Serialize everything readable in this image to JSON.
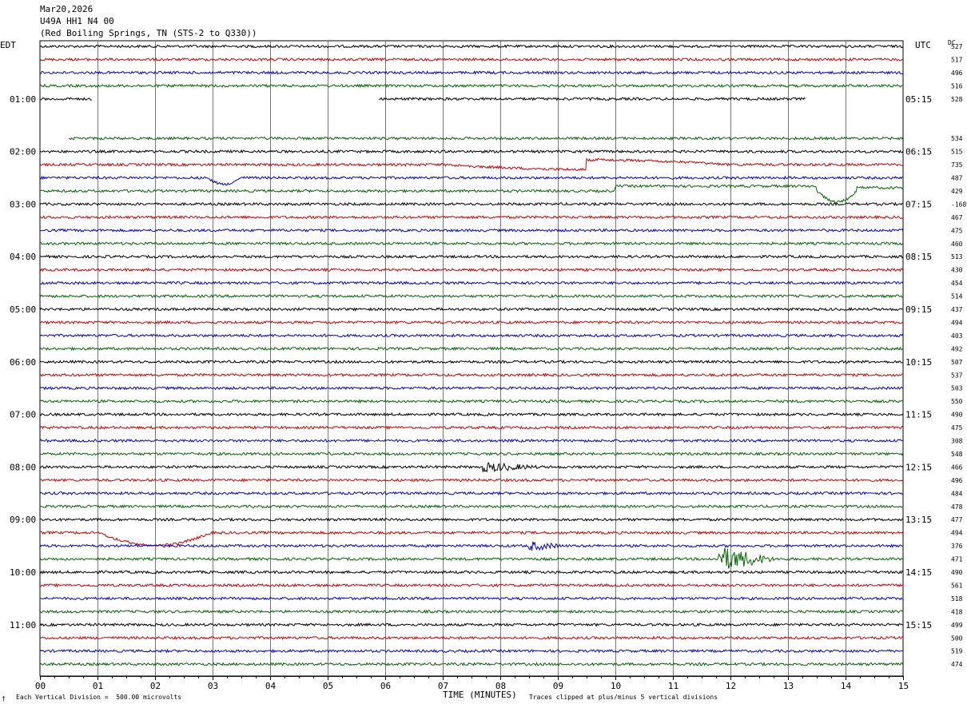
{
  "header": {
    "date": "Mar20,2026",
    "station": "U49A HH1 N4 00",
    "location": "(Red Boiling Springs, TN (STS-2 to Q330))"
  },
  "left_tz": "EDT",
  "right_tz": "UTC",
  "dc_label": "DC",
  "footer": {
    "scale": "Each Vertical Division =  500.00 microvolts",
    "xlabel": "TIME (MINUTES)",
    "clip": "Traces clipped at plus/minus 5 vertical divisions",
    "corner_mark": "†"
  },
  "colors": {
    "trace_cycle": [
      "#000000",
      "#cc0000",
      "#0000cc",
      "#006600"
    ],
    "grid": "#777777"
  },
  "chart_data": {
    "type": "line",
    "x_range": [
      0,
      15
    ],
    "x_ticks": [
      "00",
      "01",
      "02",
      "03",
      "04",
      "05",
      "06",
      "07",
      "08",
      "09",
      "10",
      "11",
      "12",
      "13",
      "14",
      "15"
    ],
    "rows_per_hour": 4,
    "minutes_per_row": 15,
    "left_hour_labels": [
      "01:00",
      "02:00",
      "03:00",
      "04:00",
      "05:00",
      "06:00",
      "07:00",
      "08:00",
      "09:00",
      "10:00",
      "11:00"
    ],
    "right_hour_labels": [
      "05:15",
      "06:15",
      "07:15",
      "08:15",
      "09:15",
      "10:15",
      "11:15",
      "12:15",
      "13:15",
      "14:15",
      "15:15"
    ],
    "first_labeled_row": 4,
    "dc_offsets": [
      527,
      517,
      496,
      516,
      528,
      null,
      null,
      534,
      515,
      735,
      487,
      429,
      -168,
      467,
      475,
      460,
      513,
      430,
      454,
      514,
      437,
      494,
      403,
      492,
      507,
      537,
      503,
      550,
      490,
      475,
      308,
      548,
      466,
      496,
      484,
      478,
      477,
      494,
      376,
      471,
      490,
      561,
      518,
      418,
      499,
      500,
      519,
      474
    ],
    "gaps": [
      {
        "row": 4,
        "data_minutes": [
          [
            0,
            0.9
          ],
          [
            5.9,
            13.3
          ]
        ]
      },
      {
        "row": 5,
        "data_minutes": []
      },
      {
        "row": 6,
        "data_minutes": []
      },
      {
        "row": 7,
        "data_minutes": [
          [
            0.5,
            15
          ]
        ]
      }
    ],
    "events": [
      {
        "row": 32,
        "minute": 7.7,
        "duration_minutes": 1.0,
        "kind": "burst"
      },
      {
        "row": 39,
        "minute": 11.8,
        "duration_minutes": 1.0,
        "kind": "clipped burst"
      },
      {
        "row": 38,
        "minute": 8.5,
        "duration_minutes": 0.6,
        "kind": "burst"
      }
    ]
  }
}
